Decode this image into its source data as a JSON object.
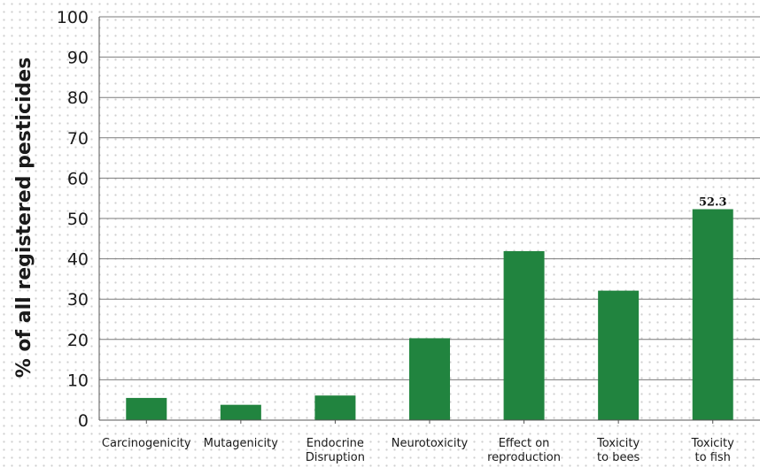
{
  "chart_data": {
    "type": "bar",
    "title": "",
    "xlabel": "",
    "ylabel": "% of all registered pesticides",
    "ylim": [
      0,
      100
    ],
    "yticks": [
      0,
      10,
      20,
      30,
      40,
      50,
      60,
      70,
      80,
      90,
      100
    ],
    "grid": true,
    "legend": "none",
    "categories": [
      [
        "Carcinogenicity"
      ],
      [
        "Mutagenicity"
      ],
      [
        "Endocrine",
        "Disruption"
      ],
      [
        "Neurotoxicity"
      ],
      [
        "Effect on",
        "reproduction"
      ],
      [
        "Toxicity",
        "to bees"
      ],
      [
        "Toxicity",
        "to fish"
      ]
    ],
    "values": [
      5.5,
      3.8,
      6.1,
      20.3,
      41.9,
      32.1,
      52.3
    ],
    "data_labels": [
      null,
      null,
      null,
      null,
      null,
      null,
      "52.3"
    ],
    "bar_color": "#21843f"
  }
}
